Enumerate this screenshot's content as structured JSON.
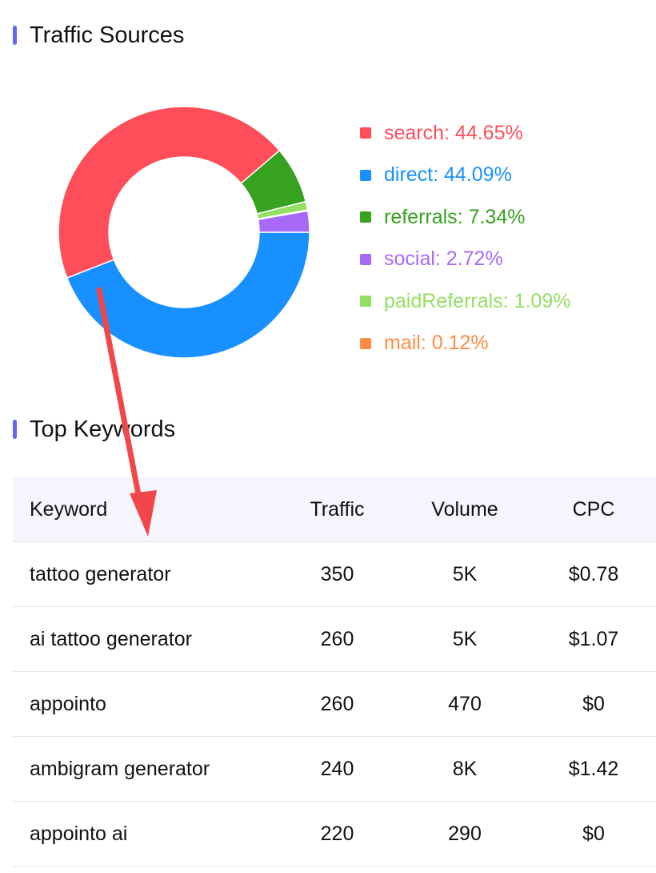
{
  "traffic_sources": {
    "title": "Traffic Sources",
    "chart_data": {
      "type": "pie",
      "donut": true,
      "title": "",
      "legend_placement": "right",
      "slices": [
        {
          "label": "search",
          "value": 44.65,
          "display": "search: 44.65%",
          "color": "#ff4d5a"
        },
        {
          "label": "direct",
          "value": 44.09,
          "display": "direct: 44.09%",
          "color": "#1890ff"
        },
        {
          "label": "referrals",
          "value": 7.34,
          "display": "referrals: 7.34%",
          "color": "#36a220"
        },
        {
          "label": "social",
          "value": 2.72,
          "display": "social: 2.72%",
          "color": "#a76af6"
        },
        {
          "label": "paidReferrals",
          "value": 1.09,
          "display": "paidReferrals: 1.09%",
          "color": "#95de64"
        },
        {
          "label": "mail",
          "value": 0.12,
          "display": "mail: 0.12%",
          "color": "#ff8c42"
        }
      ]
    }
  },
  "top_keywords": {
    "title": "Top Keywords",
    "columns": [
      "Keyword",
      "Traffic",
      "Volume",
      "CPC"
    ],
    "rows": [
      [
        "tattoo generator",
        "350",
        "5K",
        "$0.78"
      ],
      [
        "ai tattoo generator",
        "260",
        "5K",
        "$1.07"
      ],
      [
        "appointo",
        "260",
        "470",
        "$0"
      ],
      [
        "ambigram generator",
        "240",
        "8K",
        "$1.42"
      ],
      [
        "appointo ai",
        "220",
        "290",
        "$0"
      ]
    ]
  },
  "annotation": {
    "arrow_color": "#f2474a"
  },
  "colors": {
    "accent_bar": "#6366f1",
    "header_bg": "#f4f5fd",
    "row_border": "#e3e5eb"
  }
}
